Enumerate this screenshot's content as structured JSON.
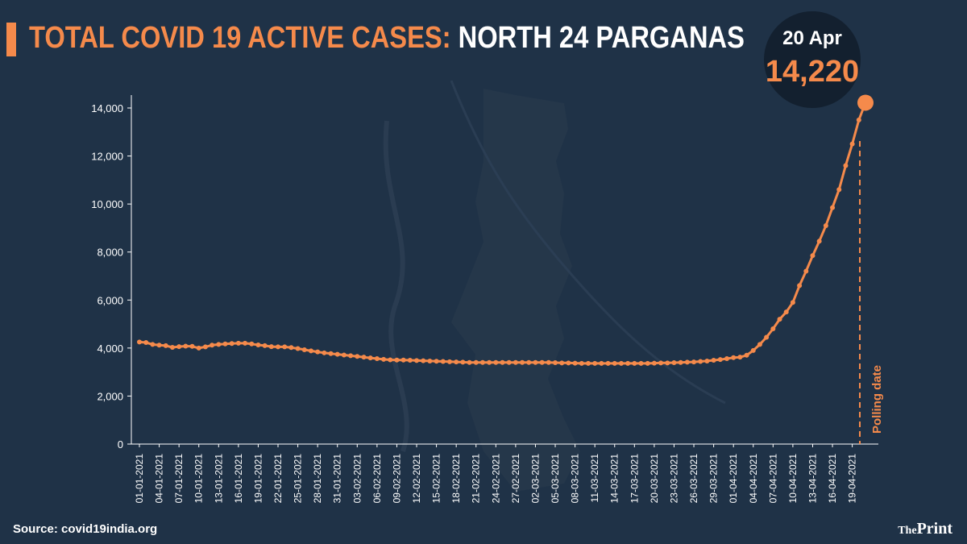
{
  "title": {
    "accent": "TOTAL COVID 19 ACTIVE CASES:",
    "rest": "NORTH 24 PARGANAS"
  },
  "badge": {
    "date": "20 Apr",
    "value": "14,220"
  },
  "source": "Source: covid19india.org",
  "brand": {
    "the": "The",
    "print": "Print"
  },
  "colors": {
    "line": "#f58a4b",
    "background": "#1f3247",
    "axis": "#ffffff",
    "polling_line": "#f58a4b"
  },
  "chart_data": {
    "type": "line",
    "title": "TOTAL COVID 19 ACTIVE CASES: NORTH 24 PARGANAS",
    "xlabel": "",
    "ylabel": "",
    "ylim": [
      0,
      15000
    ],
    "yticks": [
      0,
      2000,
      4000,
      6000,
      8000,
      10000,
      12000,
      14000
    ],
    "ytick_labels": [
      "0",
      "2,000",
      "4,000",
      "6,000",
      "8,000",
      "10,000",
      "12,000",
      "14,000"
    ],
    "grid": false,
    "xtick_labels": [
      "01-01-2021",
      "04-01-2021",
      "07-01-2021",
      "10-01-2021",
      "13-01-2021",
      "16-01-2021",
      "19-01-2021",
      "22-01-2021",
      "25-01-2021",
      "28-01-2021",
      "31-01-2021",
      "03-02-2021",
      "06-02-2021",
      "09-02-2021",
      "12-02-2021",
      "15-02-2021",
      "18-02-2021",
      "21-02-2021",
      "24-02-2021",
      "27-02-2021",
      "02-03-2021",
      "05-03-2021",
      "08-03-2021",
      "11-03-2021",
      "14-03-2021",
      "17-03-2021",
      "20-03-2021",
      "23-03-2021",
      "26-03-2021",
      "29-03-2021",
      "01-04-2021",
      "04-04-2021",
      "07-04-2021",
      "10-04-2021",
      "13-04-2021",
      "16-04-2021",
      "19-04-2021"
    ],
    "series": [
      {
        "x_start": "01-01-2021",
        "x_end": "20-04-2021",
        "values": [
          4250,
          4230,
          4150,
          4120,
          4100,
          4030,
          4060,
          4080,
          4070,
          4000,
          4050,
          4120,
          4150,
          4170,
          4190,
          4200,
          4200,
          4170,
          4130,
          4100,
          4060,
          4050,
          4050,
          4020,
          3980,
          3930,
          3880,
          3840,
          3800,
          3770,
          3740,
          3710,
          3680,
          3650,
          3620,
          3590,
          3560,
          3530,
          3510,
          3500,
          3500,
          3490,
          3480,
          3470,
          3460,
          3450,
          3440,
          3430,
          3420,
          3410,
          3400,
          3400,
          3400,
          3400,
          3400,
          3400,
          3400,
          3400,
          3400,
          3400,
          3400,
          3400,
          3400,
          3390,
          3380,
          3380,
          3370,
          3360,
          3360,
          3360,
          3360,
          3360,
          3360,
          3360,
          3360,
          3360,
          3360,
          3360,
          3370,
          3380,
          3380,
          3390,
          3400,
          3410,
          3420,
          3440,
          3460,
          3490,
          3520,
          3560,
          3600,
          3620,
          3700,
          3900,
          4150,
          4450,
          4800,
          5200,
          5500,
          5900,
          6600,
          7200,
          7850,
          8450,
          9100,
          9850,
          10600,
          11600,
          12500,
          13500,
          14220
        ]
      }
    ],
    "annotations": [
      {
        "text": "Polling date",
        "x": "20-04-2021"
      },
      {
        "text": "20 Apr",
        "value": 14220
      }
    ]
  }
}
